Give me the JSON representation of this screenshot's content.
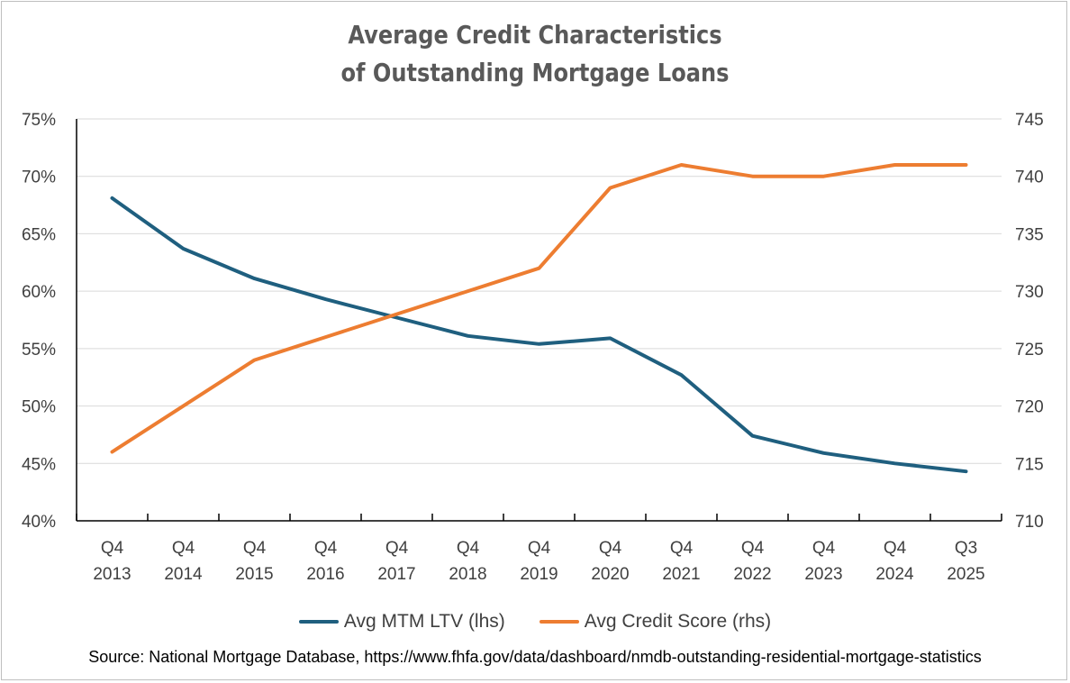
{
  "chart_data": {
    "type": "line",
    "title_lines": [
      "Average Credit Characteristics",
      "of Outstanding Mortgage Loans"
    ],
    "categories": [
      [
        "Q4",
        "2013"
      ],
      [
        "Q4",
        "2014"
      ],
      [
        "Q4",
        "2015"
      ],
      [
        "Q4",
        "2016"
      ],
      [
        "Q4",
        "2017"
      ],
      [
        "Q4",
        "2018"
      ],
      [
        "Q4",
        "2019"
      ],
      [
        "Q4",
        "2020"
      ],
      [
        "Q4",
        "2021"
      ],
      [
        "Q4",
        "2022"
      ],
      [
        "Q4",
        "2023"
      ],
      [
        "Q4",
        "2024"
      ],
      [
        "Q3",
        "2025"
      ]
    ],
    "left_axis": {
      "ylim": [
        40,
        75
      ],
      "ticks": [
        40,
        45,
        50,
        55,
        60,
        65,
        70,
        75
      ],
      "tick_labels": [
        "40%",
        "45%",
        "50%",
        "55%",
        "60%",
        "65%",
        "70%",
        "75%"
      ]
    },
    "right_axis": {
      "ylim": [
        710,
        745
      ],
      "ticks": [
        710,
        715,
        720,
        725,
        730,
        735,
        740,
        745
      ],
      "tick_labels": [
        "710",
        "715",
        "720",
        "725",
        "730",
        "735",
        "740",
        "745"
      ]
    },
    "series": [
      {
        "name": "Avg MTM LTV (lhs)",
        "axis": "left",
        "color": "#1f5f7f",
        "values": [
          68.1,
          63.7,
          61.1,
          59.3,
          57.7,
          56.1,
          55.4,
          55.9,
          52.7,
          47.4,
          45.9,
          45.0,
          44.3
        ]
      },
      {
        "name": "Avg Credit Score (rhs)",
        "axis": "right",
        "color": "#ed7d31",
        "values": [
          716,
          720,
          724,
          726,
          728,
          730,
          732,
          739,
          741,
          740,
          740,
          741,
          741
        ]
      }
    ],
    "grid": true,
    "legend_position": "bottom"
  },
  "source_note": "Source: National Mortgage Database, https://www.fhfa.gov/data/dashboard/nmdb-outstanding-residential-mortgage-statistics"
}
